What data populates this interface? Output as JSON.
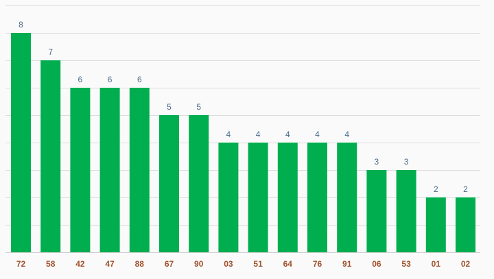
{
  "chart_data": {
    "type": "bar",
    "title": "",
    "xlabel": "",
    "ylabel": "",
    "categories": [
      "72",
      "58",
      "42",
      "47",
      "88",
      "67",
      "90",
      "03",
      "51",
      "64",
      "76",
      "91",
      "06",
      "53",
      "01",
      "02"
    ],
    "values": [
      8,
      7,
      6,
      6,
      6,
      5,
      5,
      4,
      4,
      4,
      4,
      4,
      3,
      3,
      2,
      2
    ],
    "ylim": [
      0,
      9
    ],
    "grid": true,
    "data_labels": true
  },
  "colors": {
    "bar": "#00ae4f",
    "value_label": "#4b6b8b",
    "category_label": "#a0522d",
    "background": "#fafafa"
  }
}
